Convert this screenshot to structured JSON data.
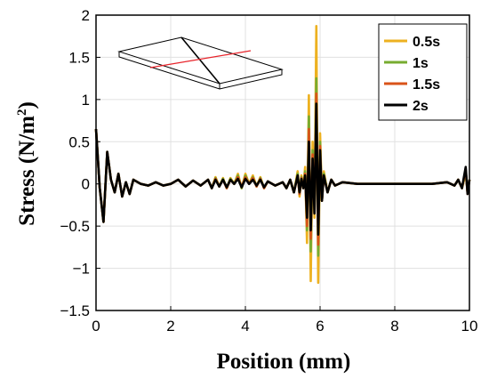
{
  "chart_data": {
    "type": "line",
    "xlabel": "Position (mm)",
    "ylabel_main": "Stress (N/m",
    "ylabel_sup": "2",
    "ylabel_close": ")",
    "xlim": [
      0,
      10
    ],
    "ylim": [
      -1.5,
      2
    ],
    "x_ticks": [
      0,
      2,
      4,
      6,
      8,
      10
    ],
    "y_ticks": [
      -1.5,
      -1,
      -0.5,
      0,
      0.5,
      1,
      1.5,
      2
    ],
    "y_tick_labels": [
      "−1.5",
      "−1",
      "−0.5",
      "0",
      "0.5",
      "1",
      "1.5",
      "2"
    ],
    "grid": true,
    "legend_position": "top-right",
    "series": [
      {
        "name": "0.5s",
        "color": "#EDB120",
        "x": [
          0,
          0.1,
          0.2,
          0.3,
          0.4,
          0.5,
          0.6,
          0.7,
          0.8,
          0.9,
          1.0,
          1.2,
          1.4,
          1.6,
          1.8,
          2.0,
          2.2,
          2.4,
          2.6,
          2.8,
          3.0,
          3.1,
          3.2,
          3.3,
          3.4,
          3.5,
          3.6,
          3.7,
          3.8,
          3.9,
          4.0,
          4.1,
          4.2,
          4.3,
          4.4,
          4.5,
          4.6,
          4.8,
          5.0,
          5.1,
          5.2,
          5.3,
          5.4,
          5.45,
          5.5,
          5.55,
          5.6,
          5.65,
          5.7,
          5.75,
          5.8,
          5.85,
          5.9,
          5.95,
          6.0,
          6.05,
          6.1,
          6.2,
          6.3,
          6.4,
          6.6,
          7.0,
          7.5,
          8.0,
          8.5,
          9.0,
          9.4,
          9.6,
          9.7,
          9.8,
          9.9,
          9.95,
          10.0
        ],
        "y": [
          0.65,
          -0.05,
          -0.45,
          0.38,
          0.05,
          -0.1,
          0.12,
          -0.15,
          0.02,
          -0.12,
          0.05,
          0.0,
          -0.02,
          0.02,
          -0.02,
          0.0,
          0.05,
          -0.03,
          0.04,
          -0.02,
          0.05,
          -0.05,
          0.08,
          -0.03,
          0.07,
          -0.05,
          0.07,
          0.0,
          0.12,
          -0.05,
          0.12,
          0.0,
          0.1,
          -0.03,
          0.08,
          -0.05,
          0.03,
          -0.02,
          0.02,
          -0.05,
          0.05,
          -0.1,
          0.15,
          -0.15,
          0.1,
          -0.05,
          0.2,
          -0.7,
          1.05,
          -1.15,
          0.5,
          -0.4,
          1.87,
          -1.17,
          0.6,
          -0.2,
          0.15,
          -0.1,
          0.05,
          -0.02,
          0.02,
          0.0,
          0.0,
          0.0,
          0.0,
          0.0,
          0.02,
          -0.02,
          0.05,
          -0.05,
          0.12,
          -0.1,
          0.05
        ]
      },
      {
        "name": "1s",
        "color": "#77AC30",
        "x": [
          0,
          0.1,
          0.2,
          0.3,
          0.4,
          0.5,
          0.6,
          0.7,
          0.8,
          0.9,
          1.0,
          1.2,
          1.4,
          1.6,
          1.8,
          2.0,
          2.2,
          2.4,
          2.6,
          2.8,
          3.0,
          3.1,
          3.2,
          3.3,
          3.4,
          3.5,
          3.6,
          3.7,
          3.8,
          3.9,
          4.0,
          4.1,
          4.2,
          4.3,
          4.4,
          4.5,
          4.6,
          4.8,
          5.0,
          5.1,
          5.2,
          5.3,
          5.4,
          5.45,
          5.5,
          5.55,
          5.6,
          5.65,
          5.7,
          5.75,
          5.8,
          5.85,
          5.9,
          5.95,
          6.0,
          6.05,
          6.1,
          6.2,
          6.3,
          6.4,
          6.6,
          7.0,
          7.5,
          8.0,
          8.5,
          9.0,
          9.4,
          9.6,
          9.7,
          9.8,
          9.9,
          9.95,
          10.0
        ],
        "y": [
          0.65,
          -0.05,
          -0.45,
          0.38,
          0.05,
          -0.1,
          0.12,
          -0.15,
          0.02,
          -0.12,
          0.05,
          0.0,
          -0.02,
          0.02,
          -0.02,
          0.0,
          0.05,
          -0.03,
          0.04,
          -0.02,
          0.05,
          -0.05,
          0.07,
          -0.03,
          0.06,
          -0.05,
          0.06,
          0.0,
          0.1,
          -0.05,
          0.1,
          0.0,
          0.08,
          -0.03,
          0.07,
          -0.05,
          0.03,
          -0.02,
          0.02,
          -0.05,
          0.05,
          -0.1,
          0.12,
          -0.12,
          0.08,
          -0.05,
          0.15,
          -0.55,
          0.8,
          -0.8,
          0.4,
          -0.35,
          1.25,
          -0.85,
          0.5,
          -0.2,
          0.12,
          -0.1,
          0.05,
          -0.02,
          0.02,
          0.0,
          0.0,
          0.0,
          0.0,
          0.0,
          0.02,
          -0.02,
          0.05,
          -0.05,
          0.15,
          -0.1,
          0.05
        ]
      },
      {
        "name": "1.5s",
        "color": "#D95319",
        "x": [
          0,
          0.1,
          0.2,
          0.3,
          0.4,
          0.5,
          0.6,
          0.7,
          0.8,
          0.9,
          1.0,
          1.2,
          1.4,
          1.6,
          1.8,
          2.0,
          2.2,
          2.4,
          2.6,
          2.8,
          3.0,
          3.1,
          3.2,
          3.3,
          3.4,
          3.5,
          3.6,
          3.7,
          3.8,
          3.9,
          4.0,
          4.1,
          4.2,
          4.3,
          4.4,
          4.5,
          4.6,
          4.8,
          5.0,
          5.1,
          5.2,
          5.3,
          5.4,
          5.45,
          5.5,
          5.55,
          5.6,
          5.65,
          5.7,
          5.75,
          5.8,
          5.85,
          5.9,
          5.95,
          6.0,
          6.05,
          6.1,
          6.2,
          6.3,
          6.4,
          6.6,
          7.0,
          7.5,
          8.0,
          8.5,
          9.0,
          9.4,
          9.6,
          9.7,
          9.8,
          9.9,
          9.95,
          10.0
        ],
        "y": [
          0.65,
          -0.05,
          -0.45,
          0.38,
          0.05,
          -0.1,
          0.12,
          -0.15,
          0.02,
          -0.12,
          0.05,
          0.0,
          -0.02,
          0.02,
          -0.02,
          0.0,
          0.05,
          -0.03,
          0.04,
          -0.02,
          0.05,
          -0.05,
          0.06,
          -0.03,
          0.05,
          -0.05,
          0.05,
          0.0,
          0.08,
          -0.04,
          0.08,
          0.0,
          0.07,
          -0.03,
          0.06,
          -0.05,
          0.03,
          -0.02,
          0.02,
          -0.05,
          0.05,
          -0.1,
          0.1,
          -0.12,
          0.07,
          -0.05,
          0.12,
          -0.5,
          0.65,
          -0.65,
          0.35,
          -0.35,
          1.07,
          -0.72,
          0.45,
          -0.2,
          0.1,
          -0.1,
          0.05,
          -0.02,
          0.02,
          0.0,
          0.0,
          0.0,
          0.0,
          0.0,
          0.02,
          -0.02,
          0.05,
          -0.05,
          0.17,
          -0.12,
          0.05
        ]
      },
      {
        "name": "2s",
        "color": "#000000",
        "x": [
          0,
          0.1,
          0.2,
          0.3,
          0.4,
          0.5,
          0.6,
          0.7,
          0.8,
          0.9,
          1.0,
          1.2,
          1.4,
          1.6,
          1.8,
          2.0,
          2.2,
          2.4,
          2.6,
          2.8,
          3.0,
          3.1,
          3.2,
          3.3,
          3.4,
          3.5,
          3.6,
          3.7,
          3.8,
          3.9,
          4.0,
          4.1,
          4.2,
          4.3,
          4.4,
          4.5,
          4.6,
          4.8,
          5.0,
          5.1,
          5.2,
          5.3,
          5.4,
          5.45,
          5.5,
          5.55,
          5.6,
          5.65,
          5.7,
          5.75,
          5.8,
          5.85,
          5.9,
          5.95,
          6.0,
          6.05,
          6.1,
          6.2,
          6.3,
          6.4,
          6.6,
          7.0,
          7.5,
          8.0,
          8.5,
          9.0,
          9.4,
          9.6,
          9.7,
          9.8,
          9.9,
          9.95,
          10.0
        ],
        "y": [
          0.65,
          -0.05,
          -0.45,
          0.38,
          0.05,
          -0.1,
          0.12,
          -0.15,
          0.02,
          -0.12,
          0.05,
          0.0,
          -0.02,
          0.02,
          -0.02,
          0.0,
          0.05,
          -0.03,
          0.04,
          -0.02,
          0.05,
          -0.05,
          0.05,
          -0.03,
          0.05,
          -0.04,
          0.05,
          0.0,
          0.06,
          -0.04,
          0.06,
          0.0,
          0.05,
          -0.02,
          0.05,
          -0.04,
          0.03,
          -0.02,
          0.02,
          -0.05,
          0.05,
          -0.1,
          0.1,
          -0.1,
          0.06,
          -0.05,
          0.1,
          -0.4,
          0.5,
          -0.55,
          0.3,
          -0.35,
          0.95,
          -0.6,
          0.4,
          -0.2,
          0.1,
          -0.1,
          0.05,
          -0.02,
          0.02,
          0.0,
          0.0,
          0.0,
          0.0,
          0.0,
          0.02,
          -0.02,
          0.05,
          -0.05,
          0.2,
          -0.12,
          0.05
        ]
      }
    ]
  }
}
